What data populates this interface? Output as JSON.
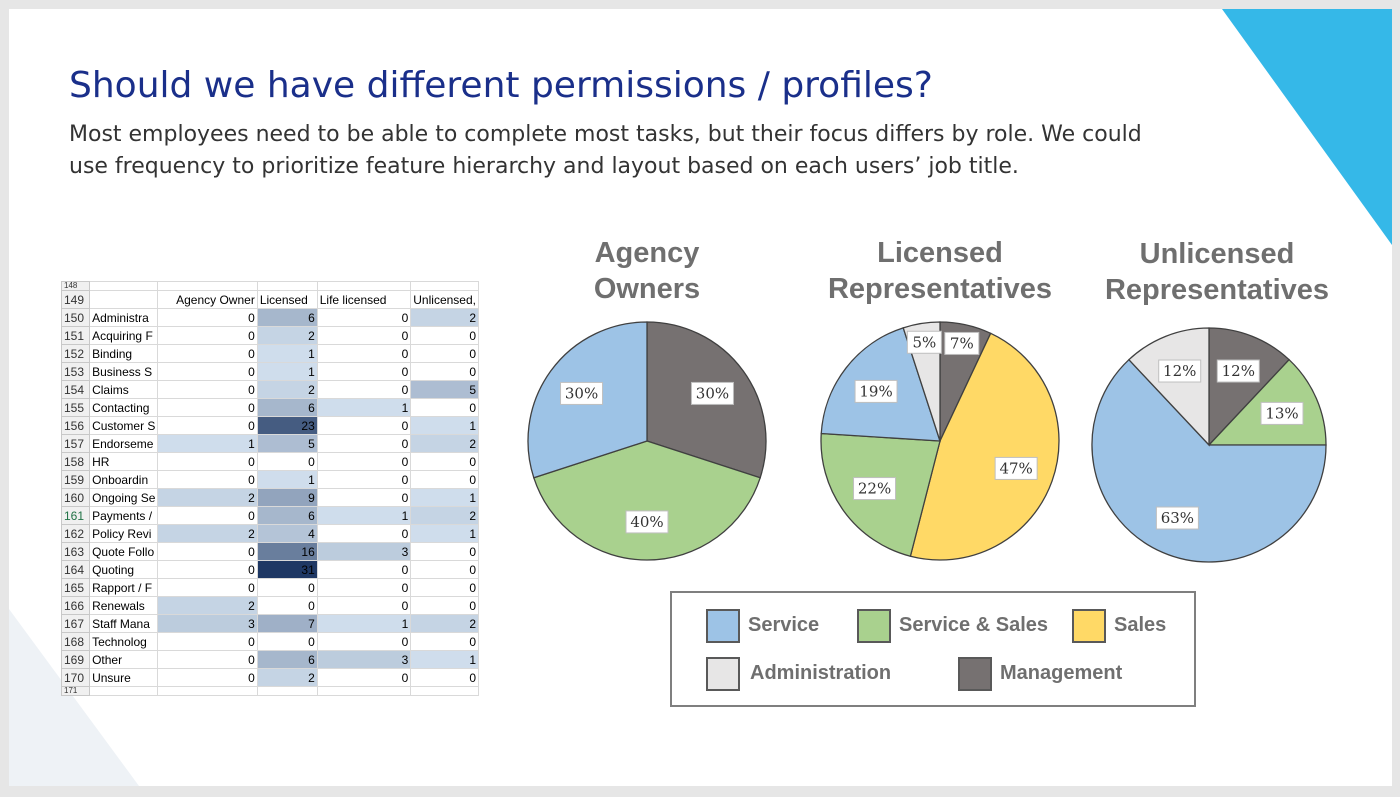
{
  "slide": {
    "title": "Should we have different permissions / profiles?",
    "subtitle": "Most employees need to be able to complete most tasks, but their focus differs by role. We could use frequency to prioritize feature hierarchy and layout based on each users’ job title.",
    "accent_color": "#35b8e8"
  },
  "spreadsheet": {
    "top_partial_row": "148",
    "headers": [
      "",
      "Agency Owner",
      "Licensed",
      "Life licensed",
      "Unlicensed,"
    ],
    "header_row_number": "149",
    "rows": [
      {
        "n": "150",
        "cat": "Administra",
        "v": [
          0,
          6,
          0,
          2
        ]
      },
      {
        "n": "151",
        "cat": "Acquiring F",
        "v": [
          0,
          2,
          0,
          0
        ]
      },
      {
        "n": "152",
        "cat": "Binding",
        "v": [
          0,
          1,
          0,
          0
        ]
      },
      {
        "n": "153",
        "cat": "Business S",
        "v": [
          0,
          1,
          0,
          0
        ]
      },
      {
        "n": "154",
        "cat": "Claims",
        "v": [
          0,
          2,
          0,
          5
        ]
      },
      {
        "n": "155",
        "cat": "Contacting",
        "v": [
          0,
          6,
          1,
          0
        ]
      },
      {
        "n": "156",
        "cat": "Customer S",
        "v": [
          0,
          23,
          0,
          1
        ]
      },
      {
        "n": "157",
        "cat": "Endorseme",
        "v": [
          1,
          5,
          0,
          2
        ]
      },
      {
        "n": "158",
        "cat": "HR",
        "v": [
          0,
          0,
          0,
          0
        ]
      },
      {
        "n": "159",
        "cat": "Onboardin",
        "v": [
          0,
          1,
          0,
          0
        ]
      },
      {
        "n": "160",
        "cat": "Ongoing Se",
        "v": [
          2,
          9,
          0,
          1
        ]
      },
      {
        "n": "161",
        "cat": "Payments /",
        "v": [
          0,
          6,
          1,
          2
        ]
      },
      {
        "n": "162",
        "cat": "Policy Revi",
        "v": [
          2,
          4,
          0,
          1
        ]
      },
      {
        "n": "163",
        "cat": "Quote Follo",
        "v": [
          0,
          16,
          3,
          0
        ]
      },
      {
        "n": "164",
        "cat": "Quoting",
        "v": [
          0,
          31,
          0,
          0
        ]
      },
      {
        "n": "165",
        "cat": "Rapport / F",
        "v": [
          0,
          0,
          0,
          0
        ]
      },
      {
        "n": "166",
        "cat": "Renewals",
        "v": [
          2,
          0,
          0,
          0
        ]
      },
      {
        "n": "167",
        "cat": "Staff Mana",
        "v": [
          3,
          7,
          1,
          2
        ]
      },
      {
        "n": "168",
        "cat": "Technolog",
        "v": [
          0,
          0,
          0,
          0
        ]
      },
      {
        "n": "169",
        "cat": "Other",
        "v": [
          0,
          6,
          3,
          1
        ]
      },
      {
        "n": "170",
        "cat": "Unsure",
        "v": [
          0,
          2,
          0,
          0
        ]
      }
    ],
    "bottom_partial_row": "171"
  },
  "chart_data": [
    {
      "type": "pie",
      "title": "Agency Owners",
      "slices": [
        {
          "label": "Service",
          "value": 30,
          "text": "30%"
        },
        {
          "label": "Service & Sales",
          "value": 40,
          "text": "40%"
        },
        {
          "label": "Management",
          "value": 30,
          "text": "30%"
        }
      ]
    },
    {
      "type": "pie",
      "title": "Licensed Representatives",
      "slices": [
        {
          "label": "Service",
          "value": 19,
          "text": "19%"
        },
        {
          "label": "Service & Sales",
          "value": 22,
          "text": "22%"
        },
        {
          "label": "Sales",
          "value": 47,
          "text": "47%"
        },
        {
          "label": "Management",
          "value": 7,
          "text": "7%"
        },
        {
          "label": "Administration",
          "value": 5,
          "text": "5%"
        }
      ]
    },
    {
      "type": "pie",
      "title": "Unlicensed Representatives",
      "slices": [
        {
          "label": "Service",
          "value": 63,
          "text": "63%"
        },
        {
          "label": "Service & Sales",
          "value": 13,
          "text": "13%"
        },
        {
          "label": "Management",
          "value": 12,
          "text": "12%"
        },
        {
          "label": "Administration",
          "value": 12,
          "text": "12%"
        }
      ]
    }
  ],
  "legend": {
    "placement": "bottom",
    "items": [
      {
        "label": "Service",
        "color": "#9dc3e6"
      },
      {
        "label": "Service & Sales",
        "color": "#a9d18e"
      },
      {
        "label": "Sales",
        "color": "#ffd966"
      },
      {
        "label": "Administration",
        "color": "#e7e6e6"
      },
      {
        "label": "Management",
        "color": "#767171"
      }
    ]
  }
}
